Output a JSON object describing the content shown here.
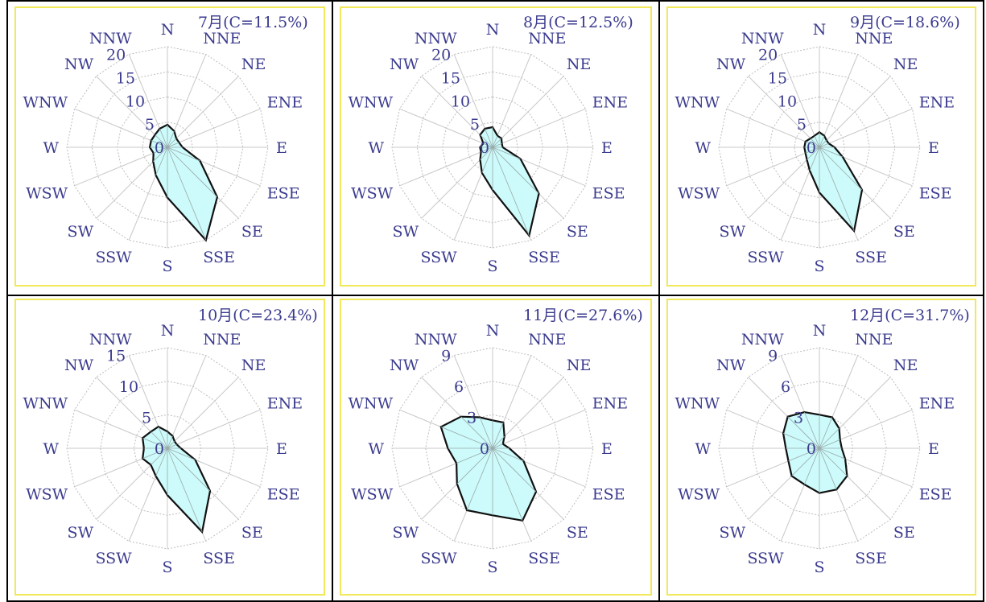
{
  "colors": {
    "fill": "#cdfafa",
    "outline": "#111111",
    "grid": "#bdbdbd",
    "spoke": "#c8c8c8",
    "label": "#3b3b8f",
    "frame": "#f1e85a"
  },
  "directions": [
    "N",
    "NNE",
    "NE",
    "ENE",
    "E",
    "ESE",
    "SE",
    "SSE",
    "S",
    "SSW",
    "SW",
    "WSW",
    "W",
    "WNW",
    "NW",
    "NNW"
  ],
  "chart_data": [
    {
      "type": "radar",
      "title": "7月(C=11.5%)",
      "rmax": 20,
      "ticks": [
        0,
        5,
        10,
        15,
        20
      ],
      "categories": [
        "N",
        "NNE",
        "NE",
        "ENE",
        "E",
        "ESE",
        "SE",
        "SSE",
        "S",
        "SSW",
        "SW",
        "WSW",
        "W",
        "WNW",
        "NW",
        "NNW"
      ],
      "values": [
        4.5,
        3.5,
        2.5,
        2.5,
        3,
        7,
        14,
        20,
        10,
        6,
        4,
        3,
        3.5,
        3.5,
        3.5,
        4
      ]
    },
    {
      "type": "radar",
      "title": "8月(C=12.5%)",
      "rmax": 20,
      "ticks": [
        0,
        5,
        10,
        15,
        20
      ],
      "categories": [
        "N",
        "NNE",
        "NE",
        "ENE",
        "E",
        "ESE",
        "SE",
        "SSE",
        "S",
        "SSW",
        "SW",
        "WSW",
        "W",
        "WNW",
        "NW",
        "NNW"
      ],
      "values": [
        4,
        2.5,
        2.5,
        2,
        2,
        6,
        13,
        19,
        8.5,
        5.5,
        3.5,
        2.5,
        2.5,
        2,
        3.5,
        4
      ]
    },
    {
      "type": "radar",
      "title": "9月(C=18.6%)",
      "rmax": 20,
      "ticks": [
        0,
        5,
        10,
        15,
        20
      ],
      "categories": [
        "N",
        "NNE",
        "NE",
        "ENE",
        "E",
        "ESE",
        "SE",
        "SSE",
        "S",
        "SSW",
        "SW",
        "WSW",
        "W",
        "WNW",
        "NW",
        "NNW"
      ],
      "values": [
        3,
        2.5,
        2,
        2,
        3,
        5,
        12,
        18,
        9,
        5,
        3.5,
        3,
        3,
        3,
        2.5,
        2.5
      ]
    },
    {
      "type": "radar",
      "title": "10月(C=23.4%)",
      "rmax": 15,
      "ticks": [
        0,
        5,
        10,
        15
      ],
      "categories": [
        "N",
        "NNE",
        "NE",
        "ENE",
        "E",
        "ESE",
        "SE",
        "SSE",
        "S",
        "SSW",
        "SW",
        "WSW",
        "W",
        "WNW",
        "NW",
        "NNW"
      ],
      "values": [
        2.5,
        2,
        1.5,
        1.5,
        2,
        4.5,
        9,
        13.5,
        7,
        4.5,
        3.5,
        4,
        3.5,
        4,
        3.5,
        3.5
      ]
    },
    {
      "type": "radar",
      "title": "11月(C=27.6%)",
      "rmax": 9,
      "ticks": [
        0,
        3,
        6,
        9
      ],
      "categories": [
        "N",
        "NNE",
        "NE",
        "ENE",
        "E",
        "ESE",
        "SE",
        "SSE",
        "S",
        "SSW",
        "SW",
        "WSW",
        "W",
        "WNW",
        "NW",
        "NNW"
      ],
      "values": [
        2.5,
        2.5,
        1.5,
        1,
        1.5,
        3,
        5.5,
        7,
        6,
        6,
        4.5,
        3.5,
        4,
        5,
        4,
        3
      ]
    },
    {
      "type": "radar",
      "title": "12月(C=31.7%)",
      "rmax": 9,
      "ticks": [
        0,
        3,
        6,
        9
      ],
      "categories": [
        "N",
        "NNE",
        "NE",
        "ENE",
        "E",
        "ESE",
        "SE",
        "SSE",
        "S",
        "SSW",
        "SW",
        "WSW",
        "W",
        "WNW",
        "NW",
        "NNW"
      ],
      "values": [
        3,
        3,
        2.5,
        2,
        2,
        2.5,
        3.5,
        4,
        4,
        3.5,
        3.5,
        3,
        3,
        3.5,
        4,
        3.5
      ]
    }
  ]
}
